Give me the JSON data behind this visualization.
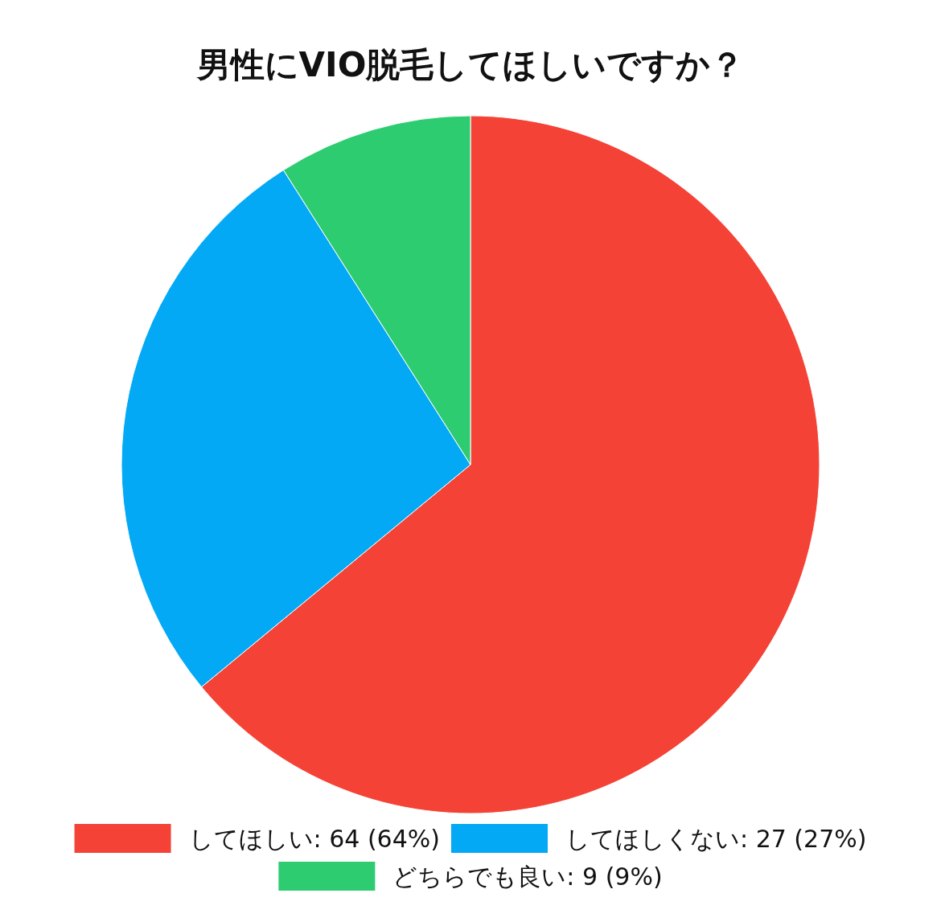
{
  "chart_data": {
    "type": "pie",
    "title": "男性にVIO脱毛してほしいですか？",
    "categories": [
      "してほしい",
      "してほしくない",
      "どちらでも良い"
    ],
    "values": [
      64,
      27,
      9
    ],
    "colors": [
      "#f44336",
      "#03a9f4",
      "#2ecc71"
    ],
    "value_labels": [
      "64 (64%)",
      "27 (27%)",
      "9 (9%)"
    ],
    "legend": "bottom"
  }
}
